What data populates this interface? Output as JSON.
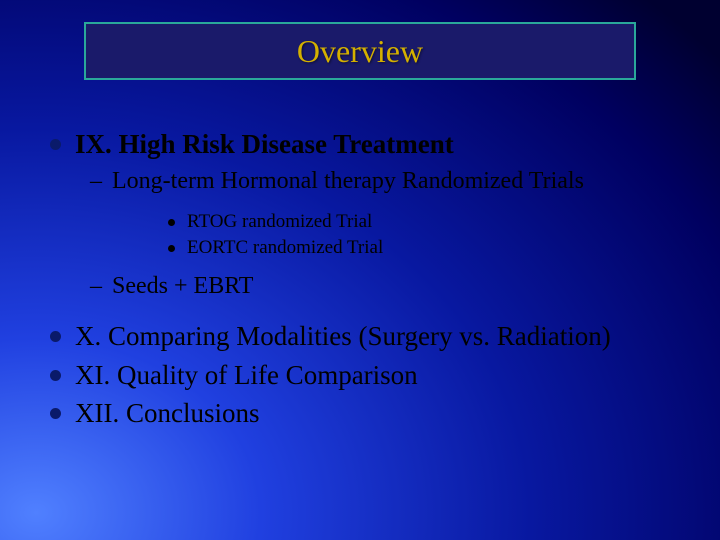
{
  "title": "Overview",
  "colors": {
    "title_text": "#d4b000",
    "title_box_bg": "#1a1a6a",
    "title_box_border": "#2aa89a",
    "bullet_dot": "#0a1a6a",
    "sub_bullet_dot": "#000000",
    "text": "#000000",
    "bg_gradient_inner": "#5080ff",
    "bg_gradient_outer": "#000030"
  },
  "fonts": {
    "family": "Times New Roman",
    "title_size_pt": 32,
    "level1_size_pt": 27,
    "level2_size_pt": 24,
    "level3_size_pt": 19
  },
  "items": {
    "ix": {
      "label": "IX. High Risk Disease Treatment",
      "sub1": {
        "label": "Long-term Hormonal therapy Randomized Trials",
        "detail1": "RTOG randomized Trial",
        "detail2": "EORTC randomized Trial"
      },
      "sub2": {
        "label": "Seeds + EBRT"
      }
    },
    "x": {
      "label": "X. Comparing Modalities (Surgery vs. Radiation)"
    },
    "xi": {
      "label": "XI. Quality of Life Comparison"
    },
    "xii": {
      "label": "XII. Conclusions"
    }
  }
}
